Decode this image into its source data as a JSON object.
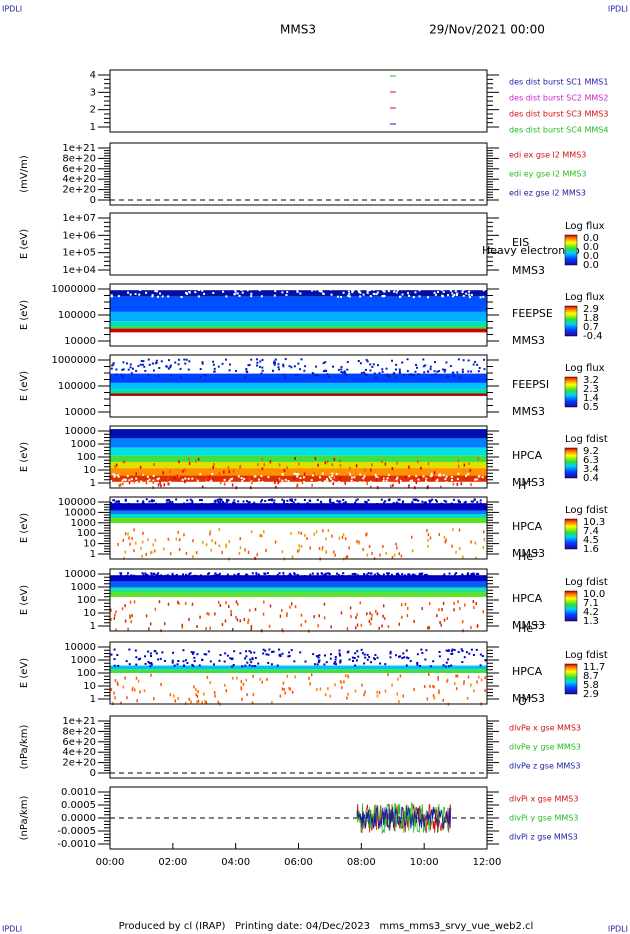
{
  "header": {
    "left": "IPDLI",
    "right": "IPDLI",
    "title": "MMS3",
    "date": "29/Nov/2021 00:00"
  },
  "footer": {
    "left": "IPDLI",
    "right": "IPDLI",
    "text": "Produced by cl (IRAP)   Printing date: 04/Dec/2023   mms_mms3_srvy_vue_web2.cl"
  },
  "xticks": [
    "00:00",
    "02:00",
    "04:00",
    "06:00",
    "08:00",
    "10:00",
    "12:00"
  ],
  "panels": [
    {
      "ylabel": "",
      "yticks": [
        "4",
        "3",
        "2",
        "1"
      ],
      "legend": [
        {
          "text": "des dist burst SC1 MMS1",
          "color": "#1a1aa6"
        },
        {
          "text": "des dist burst SC2 MMS2",
          "color": "#cc22cc"
        },
        {
          "text": "des dist burst SC3 MMS3",
          "color": "#d01010"
        },
        {
          "text": "des dist burst SC4 MMS4",
          "color": "#22bb22"
        }
      ]
    },
    {
      "ylabel": "(mV/m)",
      "yticks": [
        "1e+21",
        "8e+20",
        "6e+20",
        "4e+20",
        "2e+20",
        "0"
      ],
      "legend": [
        {
          "text": "edi ex gse l2 MMS3",
          "color": "#d01010"
        },
        {
          "text": "edi ey gse l2 MMS3",
          "color": "#22bb22"
        },
        {
          "text": "edi ez gse l2 MMS3",
          "color": "#1a1aa6"
        }
      ]
    },
    {
      "ylabel": "E (eV)",
      "yticks": [
        "1e+07",
        "1e+06",
        "1e+05",
        "1e+04"
      ],
      "labels": [
        "EIS",
        "Heavy electron to",
        "MMS3"
      ],
      "colorbar": {
        "title": "Log flux",
        "labels": [
          "0.0",
          "0.0",
          "0.0",
          "0.0"
        ]
      }
    },
    {
      "ylabel": "E (eV)",
      "yticks": [
        "1000000",
        "100000",
        "10000"
      ],
      "labels": [
        "FEEPSE",
        "MMS3"
      ],
      "colorbar": {
        "title": "Log flux",
        "labels": [
          "2.9",
          "1.8",
          "0.7",
          "-0.4"
        ]
      }
    },
    {
      "ylabel": "E (eV)",
      "yticks": [
        "1000000",
        "100000",
        "10000"
      ],
      "labels": [
        "FEEPSI",
        "MMS3"
      ],
      "colorbar": {
        "title": "Log flux",
        "labels": [
          "3.2",
          "2.3",
          "1.4",
          "0.5"
        ]
      }
    },
    {
      "ylabel": "E (eV)",
      "yticks": [
        "10000",
        "1000",
        "100",
        "10",
        "1"
      ],
      "labels": [
        "HPCA",
        "MMS3"
      ],
      "species": {
        "base": "H",
        "sup": "+"
      },
      "colorbar": {
        "title": "Log fdist",
        "labels": [
          "9.2",
          "6.3",
          "3.4",
          "0.4"
        ]
      }
    },
    {
      "ylabel": "E (eV)",
      "yticks": [
        "100000",
        "10000",
        "1000",
        "100",
        "10",
        "1"
      ],
      "labels": [
        "HPCA",
        "MMS3"
      ],
      "species": {
        "base": "He",
        "sup": "+"
      },
      "colorbar": {
        "title": "Log fdist",
        "labels": [
          "10.3",
          "7.4",
          "4.5",
          "1.6"
        ]
      }
    },
    {
      "ylabel": "E (eV)",
      "yticks": [
        "10000",
        "1000",
        "100",
        "10",
        "1"
      ],
      "labels": [
        "HPCA",
        "MMS3"
      ],
      "species": {
        "base": "He",
        "sup": "++"
      },
      "colorbar": {
        "title": "Log fdist",
        "labels": [
          "10.0",
          "7.1",
          "4.2",
          "1.3"
        ]
      }
    },
    {
      "ylabel": "E (eV)",
      "yticks": [
        "10000",
        "1000",
        "100",
        "10",
        "1"
      ],
      "labels": [
        "HPCA",
        "MMS3"
      ],
      "species": {
        "base": "O",
        "sup": "+"
      },
      "colorbar": {
        "title": "Log fdist",
        "labels": [
          "11.7",
          "8.7",
          "5.8",
          "2.9"
        ]
      }
    },
    {
      "ylabel": "(nPa/km)",
      "yticks": [
        "1e+21",
        "8e+20",
        "6e+20",
        "4e+20",
        "2e+20",
        "0"
      ],
      "legend": [
        {
          "text": "dlvPe x gse MMS3",
          "color": "#d01010"
        },
        {
          "text": "dlvPe y gse MMS3",
          "color": "#22bb22"
        },
        {
          "text": "dlvPe z gse MMS3",
          "color": "#1a1aa6"
        }
      ]
    },
    {
      "ylabel": "(nPa/km)",
      "yticks": [
        "0.0010",
        "0.0005",
        "0.0000",
        "-0.0005",
        "-0.0010"
      ],
      "legend": [
        {
          "text": "dlvPi x gse MMS3",
          "color": "#d01010"
        },
        {
          "text": "dlvPi y gse MMS3",
          "color": "#22bb22"
        },
        {
          "text": "dlvPi z gse MMS3",
          "color": "#1a1aa6"
        }
      ]
    }
  ]
}
